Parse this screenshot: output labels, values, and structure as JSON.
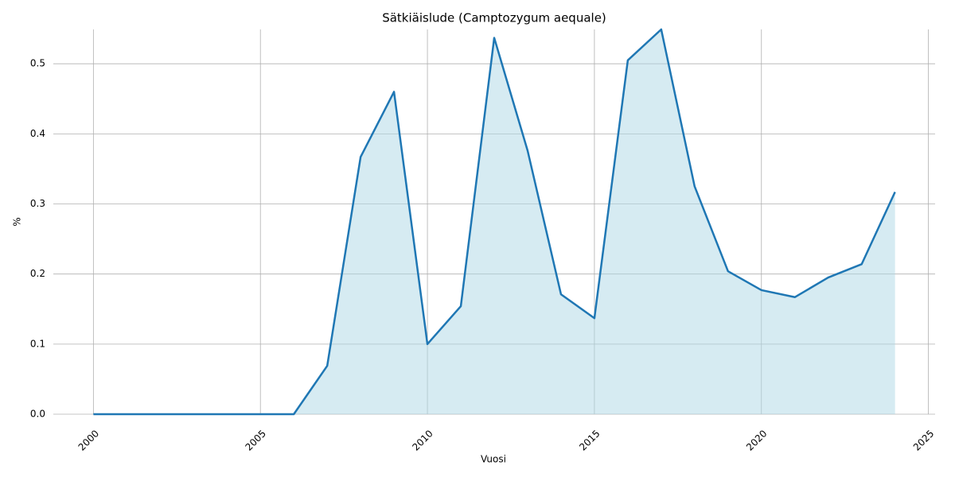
{
  "chart_data": {
    "type": "area",
    "title": "Sätkiäislude (Camptozygum aequale)",
    "x_label": "Vuosi",
    "y_label": "%",
    "x": [
      2000,
      2001,
      2002,
      2003,
      2004,
      2005,
      2006,
      2007,
      2008,
      2009,
      2010,
      2011,
      2012,
      2013,
      2014,
      2015,
      2016,
      2017,
      2018,
      2019,
      2020,
      2021,
      2022,
      2023,
      2024
    ],
    "values": [
      0,
      0,
      0,
      0,
      0,
      0,
      0,
      0.069,
      0.367,
      0.46,
      0.1,
      0.154,
      0.537,
      0.376,
      0.171,
      0.137,
      0.505,
      0.549,
      0.325,
      0.204,
      0.177,
      0.167,
      0.195,
      0.214,
      0.317
    ],
    "color": "#1f77b4",
    "fill_color": "#add8e6",
    "xlim": [
      1998.8,
      2025.2
    ],
    "xticks": [
      2000,
      2005,
      2010,
      2015,
      2020,
      2025
    ],
    "ylim": [
      0,
      0.549
    ],
    "yticks": [
      {
        "value": 0,
        "label": "0.0"
      },
      0.1,
      0.2,
      0.3,
      0.4,
      0.5
    ],
    "grid": true
  }
}
